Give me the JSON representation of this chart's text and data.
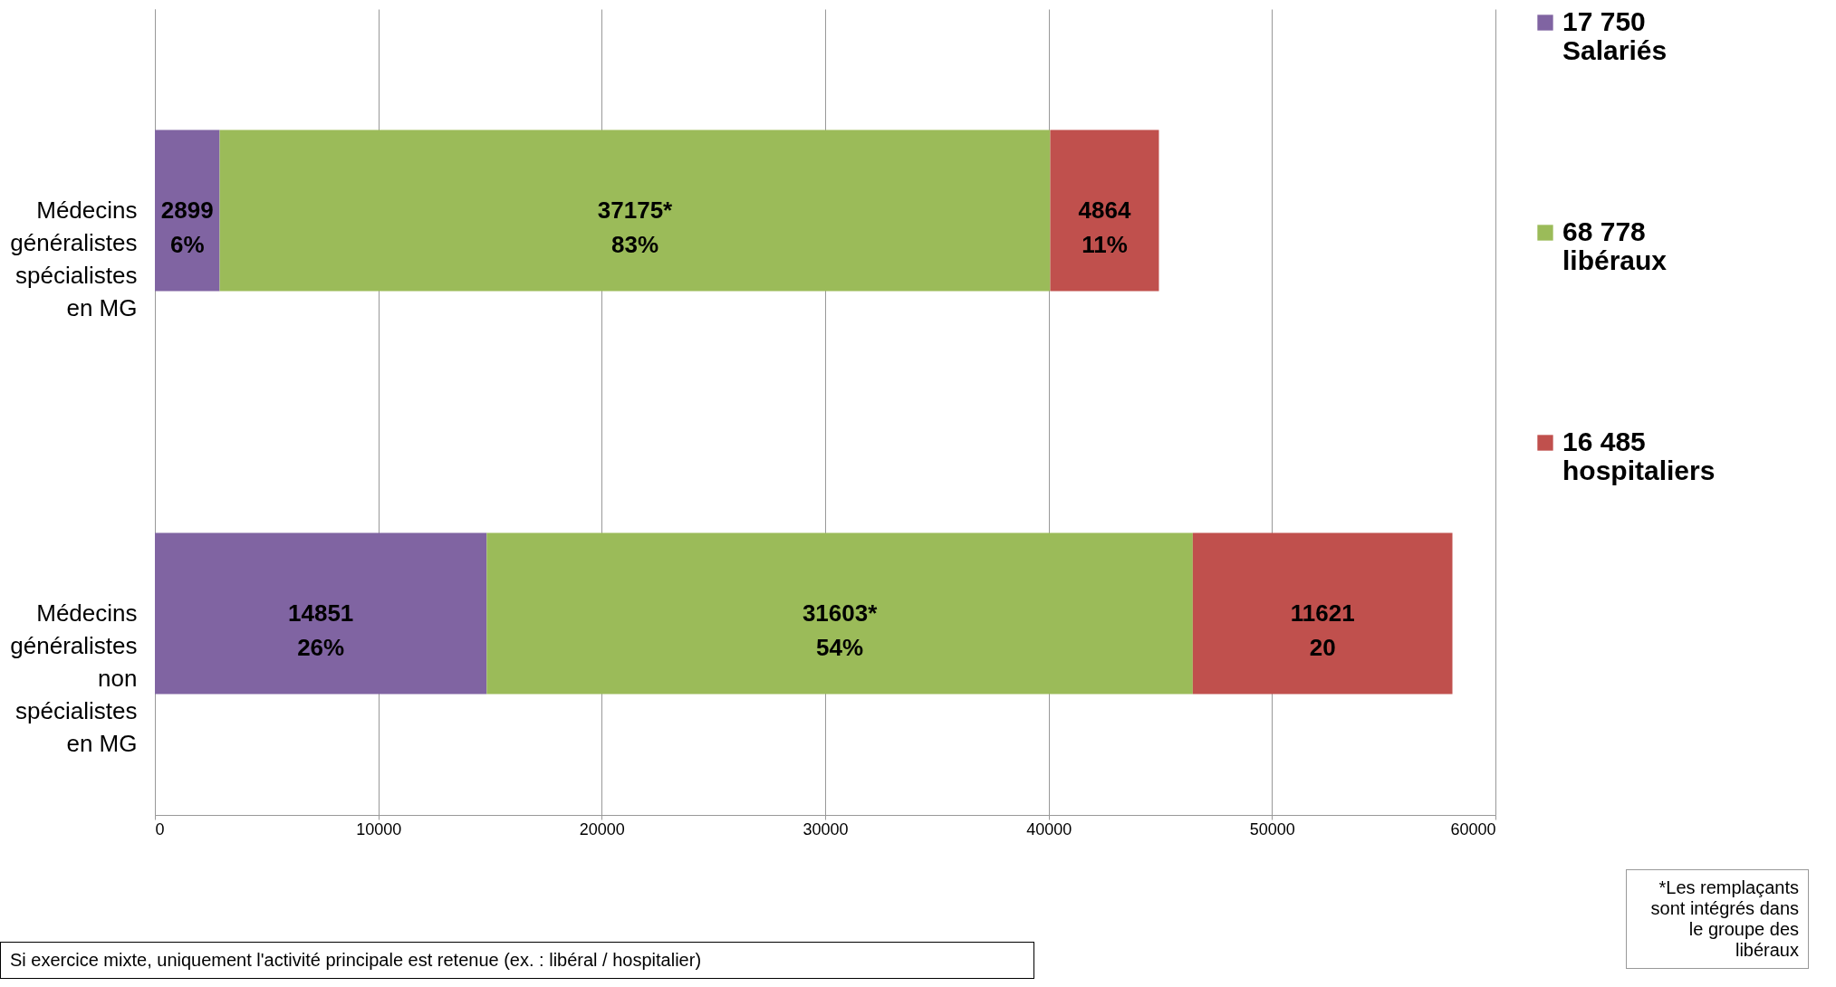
{
  "chart_data": {
    "type": "bar",
    "orientation": "horizontal",
    "stacked": true,
    "categories": [
      "Médecins généralistes spécialistes en MG",
      "Médecins généralistes non spécialistes en MG"
    ],
    "series": [
      {
        "name": "17 750 Salariés",
        "color": "#8064a2",
        "values": [
          2899,
          14851
        ],
        "value_labels": [
          "2899\n6%",
          "14851\n26%"
        ]
      },
      {
        "name": "68 778 libéraux",
        "color": "#9bbb59",
        "values": [
          37175,
          31603
        ],
        "value_labels": [
          "37175*\n83%",
          "31603*\n54%"
        ]
      },
      {
        "name": "16 485 hospitaliers",
        "color": "#c0504d",
        "values": [
          4864,
          11621
        ],
        "value_labels": [
          "4864\n11%",
          "11621\n20"
        ]
      }
    ],
    "xlim": [
      0,
      60000
    ],
    "xticks": [
      0,
      10000,
      20000,
      30000,
      40000,
      50000,
      60000
    ],
    "grid": "x",
    "legend": "right",
    "annotations": [
      "Si exercice mixte, uniquement l'activité principale est retenue (ex. : libéral / hospitalier)",
      "*Les remplaçants sont intégrés dans le groupe des libéraux"
    ]
  }
}
